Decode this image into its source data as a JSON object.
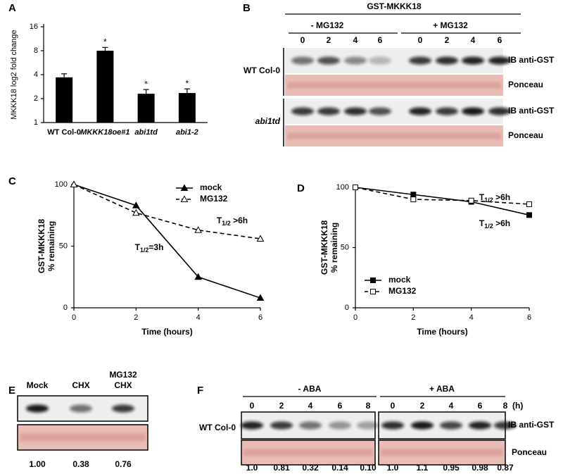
{
  "chart_data": [
    {
      "type": "bar",
      "label": "A",
      "ylabel": "MKKK18 log2 fold change",
      "categories": [
        "WT Col-0",
        "MKKK18oe#1",
        "abi1td",
        "abi1-2"
      ],
      "italic": [
        false,
        true,
        true,
        true
      ],
      "values": [
        3.7,
        8.0,
        2.3,
        2.35
      ],
      "errors": [
        0.4,
        0.8,
        0.3,
        0.3
      ],
      "significance": [
        null,
        "*",
        "*",
        "*"
      ],
      "color": "#000000",
      "log_base": 2,
      "ylim": [
        1,
        16
      ],
      "yticks": [
        1,
        2,
        4,
        8,
        16
      ]
    },
    {
      "type": "line",
      "label": "C",
      "ylabel": [
        "GST-MKKK18",
        "% remaining"
      ],
      "xlabel": "Time (hours)",
      "x": [
        0,
        2,
        4,
        6
      ],
      "series": [
        {
          "name": "mock",
          "color": "#000000",
          "marker": "triangle",
          "filled": true,
          "linestyle": "solid",
          "values": [
            100,
            83,
            25,
            8
          ]
        },
        {
          "name": "MG132",
          "color": "#000000",
          "marker": "triangle",
          "filled": false,
          "linestyle": "dashed",
          "values": [
            100,
            77,
            63,
            56
          ]
        }
      ],
      "xlim": [
        0,
        6
      ],
      "ylim": [
        0,
        100
      ],
      "xticks": [
        0,
        2,
        4,
        6
      ],
      "yticks": [
        0,
        50,
        100
      ],
      "legend": "upper right",
      "annotations": [
        {
          "main": "T",
          "sub": "1/2",
          "rest": "=3h"
        },
        {
          "main": "T",
          "sub": "1/2",
          "rest": " >6h"
        }
      ]
    },
    {
      "type": "line",
      "label": "D",
      "ylabel": [
        "GST-MKKK18",
        "% remaining"
      ],
      "xlabel": "Time (hours)",
      "x": [
        0,
        2,
        4,
        6
      ],
      "series": [
        {
          "name": "mock",
          "color": "#000000",
          "marker": "square",
          "filled": true,
          "linestyle": "solid",
          "values": [
            100,
            94,
            88,
            77
          ]
        },
        {
          "name": "MG132",
          "color": "#000000",
          "marker": "square",
          "filled": false,
          "linestyle": "dashed",
          "values": [
            100,
            90,
            89,
            86
          ]
        }
      ],
      "xlim": [
        0,
        6
      ],
      "ylim": [
        0,
        100
      ],
      "xticks": [
        0,
        2,
        4,
        6
      ],
      "yticks": [
        0,
        50,
        100
      ],
      "legend": "lower left",
      "annotations": [
        {
          "main": "T",
          "sub": "1/2",
          "rest": " >6h"
        },
        {
          "main": "T",
          "sub": "1/2",
          "rest": " >6h"
        }
      ]
    }
  ],
  "blots": {
    "B": {
      "label": "B",
      "header": "GST-MKKK18",
      "groups": [
        "- MG132",
        "+ MG132"
      ],
      "lanes": [
        "0",
        "2",
        "4",
        "6",
        "0",
        "2",
        "4",
        "6"
      ],
      "rows": [
        {
          "sample": "WT Col-0",
          "blots": [
            "IB anti-GST",
            "Ponceau"
          ]
        },
        {
          "sample": "abi1td",
          "blots": [
            "IB anti-GST",
            "Ponceau"
          ]
        }
      ]
    },
    "E": {
      "label": "E",
      "lanes": [
        [
          "Mock"
        ],
        [
          "CHX"
        ],
        [
          "MG132",
          "CHX"
        ]
      ],
      "quantification": [
        "1.00",
        "0.38",
        "0.76"
      ]
    },
    "F": {
      "label": "F",
      "groups": [
        "- ABA",
        "+ ABA"
      ],
      "lanes": [
        "0",
        "2",
        "4",
        "6",
        "8",
        "0",
        "2",
        "4",
        "6",
        "8"
      ],
      "unit": "(h)",
      "sample": "WT Col-0",
      "blots": [
        "IB anti-GST",
        "Ponceau"
      ],
      "quantification": [
        "1.0",
        "0.81",
        "0.32",
        "0.14",
        "0.10",
        "1.0",
        "1.1",
        "0.95",
        "0.98",
        "0.87"
      ]
    }
  }
}
